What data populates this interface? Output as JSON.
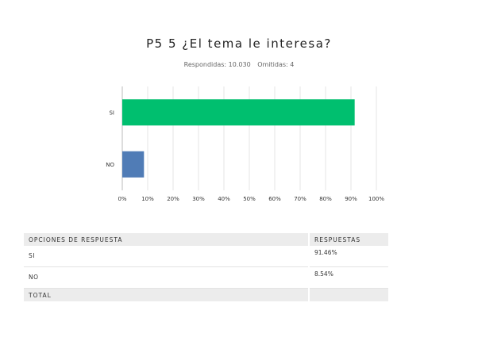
{
  "header": {
    "title": "P5 5 ¿El tema le interesa?",
    "answered_label": "Respondidas: 10.030",
    "skipped_label": "Omitidas: 4"
  },
  "chart_data": {
    "type": "bar",
    "orientation": "horizontal",
    "categories": [
      "SI",
      "NO"
    ],
    "values": [
      91.46,
      8.54
    ],
    "colors": [
      "#00bf6f",
      "#507cb6"
    ],
    "xlim": [
      0,
      100
    ],
    "xticks": [
      "0%",
      "10%",
      "20%",
      "30%",
      "40%",
      "50%",
      "60%",
      "70%",
      "80%",
      "90%",
      "100%"
    ],
    "grid": true
  },
  "table": {
    "headers": [
      "OPCIONES DE RESPUESTA",
      "RESPUESTAS"
    ],
    "rows": [
      {
        "option": "SI",
        "value": "91.46%"
      },
      {
        "option": "NO",
        "value": "8.54%"
      }
    ],
    "total_label": "TOTAL"
  }
}
